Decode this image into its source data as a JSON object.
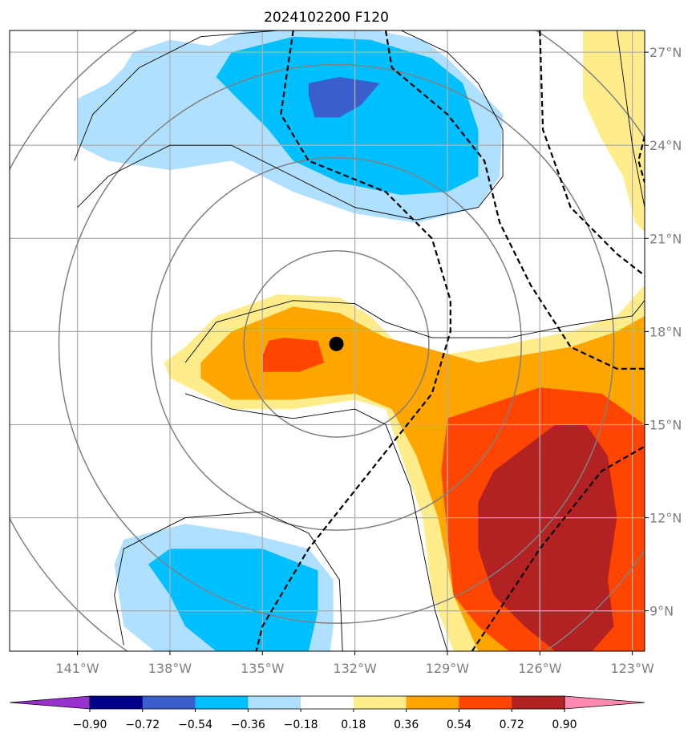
{
  "chart_data": {
    "type": "heatmap",
    "title": "2024102200 F120",
    "x_axis": {
      "unit": "degrees longitude (W)",
      "range": [
        -143.2,
        -122.6
      ],
      "ticks": [
        -141,
        -138,
        -135,
        -132,
        -129,
        -126,
        -123
      ],
      "tick_labels": [
        "141°W",
        "138°W",
        "135°W",
        "132°W",
        "129°W",
        "126°W",
        "123°W"
      ]
    },
    "y_axis": {
      "unit": "degrees latitude (N)",
      "range": [
        7.7,
        27.7
      ],
      "ticks": [
        9,
        12,
        15,
        18,
        21,
        24,
        27
      ],
      "tick_labels": [
        "9°N",
        "12°N",
        "15°N",
        "18°N",
        "21°N",
        "24°N",
        "27°N"
      ]
    },
    "grid": true,
    "colorbar": {
      "levels": [
        -0.9,
        -0.72,
        -0.54,
        -0.36,
        -0.18,
        0.18,
        0.36,
        0.54,
        0.72,
        0.9
      ],
      "labels": [
        "−0.90",
        "−0.72",
        "−0.54",
        "−0.36",
        "−0.18",
        "0.18",
        "0.36",
        "0.54",
        "0.72",
        "0.90"
      ],
      "colors": [
        "#9932cc",
        "#00008b",
        "#3a5fcd",
        "#00bfff",
        "#b0e0ff",
        "#ffffff",
        "#ffec8b",
        "#ffa500",
        "#ff4500",
        "#b22222",
        "#ff88b0"
      ],
      "extend": "both"
    },
    "storm_center": {
      "lon": -132.6,
      "lat": 17.6
    },
    "filled_regions": [
      {
        "color": "#b0e0ff",
        "lonlat": [
          [
            -136.7,
            27.2
          ],
          [
            -135.6,
            27.7
          ],
          [
            -131.3,
            27.7
          ],
          [
            -129.8,
            27.4
          ],
          [
            -129.0,
            26.8
          ],
          [
            -128.0,
            25.8
          ],
          [
            -127.2,
            25.0
          ],
          [
            -127.3,
            23.0
          ],
          [
            -128.0,
            22.0
          ],
          [
            -130.0,
            21.5
          ],
          [
            -132.0,
            21.8
          ],
          [
            -134.0,
            22.5
          ],
          [
            -136.0,
            23.5
          ],
          [
            -138.0,
            23.2
          ],
          [
            -140.0,
            23.5
          ],
          [
            -141.0,
            24.0
          ],
          [
            -141.0,
            25.5
          ],
          [
            -140.0,
            26.0
          ],
          [
            -139.5,
            26.5
          ],
          [
            -139.2,
            27.0
          ],
          [
            -138.0,
            27.4
          ]
        ]
      },
      {
        "color": "#00bfff",
        "lonlat": [
          [
            -136.0,
            27.0
          ],
          [
            -134.0,
            27.5
          ],
          [
            -131.5,
            27.4
          ],
          [
            -129.5,
            26.8
          ],
          [
            -128.5,
            26.0
          ],
          [
            -128.0,
            24.5
          ],
          [
            -128.0,
            23.0
          ],
          [
            -129.0,
            22.5
          ],
          [
            -130.5,
            22.4
          ],
          [
            -132.5,
            22.8
          ],
          [
            -134.0,
            23.5
          ],
          [
            -134.8,
            24.5
          ],
          [
            -135.8,
            25.5
          ],
          [
            -136.5,
            26.2
          ]
        ]
      },
      {
        "color": "#b0e0ff",
        "lonlat": [
          [
            -135.5,
            11.5
          ],
          [
            -133.5,
            11.0
          ],
          [
            -132.7,
            10.0
          ],
          [
            -132.7,
            8.5
          ],
          [
            -132.8,
            7.7
          ],
          [
            -138.5,
            7.7
          ],
          [
            -139.5,
            8.5
          ],
          [
            -139.8,
            10.5
          ],
          [
            -139.5,
            11.3
          ],
          [
            -137.5,
            11.8
          ]
        ]
      },
      {
        "color": "#00bfff",
        "lonlat": [
          [
            -135.0,
            11.0
          ],
          [
            -133.2,
            10.3
          ],
          [
            -133.2,
            9.0
          ],
          [
            -133.5,
            7.7
          ],
          [
            -136.5,
            7.7
          ],
          [
            -137.5,
            8.5
          ],
          [
            -138.0,
            9.5
          ],
          [
            -138.7,
            10.5
          ],
          [
            -138.0,
            11.0
          ],
          [
            -136.5,
            11.0
          ]
        ]
      },
      {
        "color": "#3a5fcd",
        "lonlat": [
          [
            -133.5,
            26.0
          ],
          [
            -132.5,
            26.2
          ],
          [
            -131.2,
            26.0
          ],
          [
            -131.8,
            25.3
          ],
          [
            -132.5,
            24.9
          ],
          [
            -133.3,
            24.9
          ],
          [
            -133.5,
            25.6
          ]
        ]
      },
      {
        "color": "#ffec8b",
        "lonlat": [
          [
            -137.5,
            17.5
          ],
          [
            -136.5,
            18.5
          ],
          [
            -134.5,
            19.2
          ],
          [
            -132.5,
            19.1
          ],
          [
            -131.5,
            18.5
          ],
          [
            -130.5,
            17.5
          ],
          [
            -129.5,
            17.2
          ],
          [
            -127.5,
            17.5
          ],
          [
            -125.0,
            18.0
          ],
          [
            -123.5,
            18.5
          ],
          [
            -122.6,
            19.5
          ],
          [
            -122.6,
            7.7
          ],
          [
            -128.8,
            7.7
          ],
          [
            -129.5,
            9.5
          ],
          [
            -129.8,
            12.0
          ],
          [
            -130.5,
            14.0
          ],
          [
            -131.0,
            15.5
          ],
          [
            -132.0,
            15.8
          ],
          [
            -134.0,
            15.5
          ],
          [
            -136.0,
            15.5
          ],
          [
            -138.0,
            16.5
          ],
          [
            -138.2,
            17.0
          ]
        ]
      },
      {
        "color": "#ffa500",
        "lonlat": [
          [
            -137.0,
            17.0
          ],
          [
            -136.0,
            18.0
          ],
          [
            -134.0,
            18.8
          ],
          [
            -132.5,
            18.6
          ],
          [
            -131.0,
            17.8
          ],
          [
            -129.8,
            17.5
          ],
          [
            -128.0,
            17.0
          ],
          [
            -125.0,
            17.5
          ],
          [
            -123.5,
            18.0
          ],
          [
            -122.6,
            18.5
          ],
          [
            -122.6,
            27.7
          ],
          [
            -124.0,
            27.7
          ],
          [
            -124.0,
            25.0
          ],
          [
            -123.0,
            24.0
          ],
          [
            -122.6,
            22.5
          ],
          [
            -122.6,
            7.7
          ],
          [
            -128.0,
            7.7
          ],
          [
            -128.8,
            9.5
          ],
          [
            -129.3,
            12.0
          ],
          [
            -130.0,
            14.0
          ],
          [
            -130.8,
            15.5
          ],
          [
            -132.0,
            16.0
          ],
          [
            -134.0,
            15.8
          ],
          [
            -136.0,
            15.8
          ],
          [
            -137.0,
            16.5
          ]
        ]
      },
      {
        "color": "#ffec8b",
        "lonlat": [
          [
            -124.6,
            27.7
          ],
          [
            -124.6,
            25.5
          ],
          [
            -124.0,
            24.2
          ],
          [
            -123.3,
            23.0
          ],
          [
            -122.9,
            21.5
          ],
          [
            -122.6,
            21.2
          ],
          [
            -122.6,
            27.7
          ]
        ]
      },
      {
        "color": "#ff4500",
        "lonlat": [
          [
            -134.8,
            17.7
          ],
          [
            -134.3,
            17.8
          ],
          [
            -133.2,
            17.7
          ],
          [
            -133.0,
            17.0
          ],
          [
            -133.8,
            16.7
          ],
          [
            -135.0,
            16.7
          ],
          [
            -135.0,
            17.2
          ]
        ]
      },
      {
        "color": "#ff4500",
        "lonlat": [
          [
            -129.0,
            15.2
          ],
          [
            -126.0,
            16.2
          ],
          [
            -124.0,
            16.0
          ],
          [
            -122.6,
            15.0
          ],
          [
            -122.6,
            7.7
          ],
          [
            -127.0,
            7.7
          ],
          [
            -128.0,
            8.5
          ],
          [
            -128.8,
            9.5
          ],
          [
            -129.0,
            11.5
          ],
          [
            -129.2,
            13.5
          ]
        ]
      },
      {
        "color": "#b22222",
        "lonlat": [
          [
            -127.5,
            13.5
          ],
          [
            -125.5,
            15.0
          ],
          [
            -124.5,
            15.0
          ],
          [
            -123.8,
            14.0
          ],
          [
            -123.5,
            12.0
          ],
          [
            -123.8,
            10.0
          ],
          [
            -123.6,
            8.5
          ],
          [
            -124.3,
            7.7
          ],
          [
            -125.5,
            7.7
          ],
          [
            -126.5,
            8.5
          ],
          [
            -127.5,
            9.5
          ],
          [
            -128.0,
            11.0
          ],
          [
            -128.0,
            12.5
          ]
        ]
      }
    ],
    "solid_contours": [
      {
        "lonlat": [
          [
            -141.1,
            23.5
          ],
          [
            -140.5,
            25.0
          ],
          [
            -139.0,
            26.5
          ],
          [
            -137.0,
            27.5
          ],
          [
            -134.5,
            27.7
          ]
        ],
        "closed": false
      },
      {
        "lonlat": [
          [
            -130.5,
            27.7
          ],
          [
            -129.0,
            27.0
          ],
          [
            -128.0,
            26.0
          ],
          [
            -127.2,
            24.5
          ],
          [
            -127.2,
            23.0
          ],
          [
            -128.0,
            22.0
          ],
          [
            -130.0,
            21.6
          ],
          [
            -132.0,
            22.0
          ],
          [
            -134.0,
            23.0
          ],
          [
            -136.0,
            24.0
          ],
          [
            -138.0,
            24.0
          ],
          [
            -140.0,
            23.0
          ],
          [
            -141.0,
            22.0
          ]
        ],
        "closed": false
      },
      {
        "lonlat": [
          [
            -137.5,
            17.0
          ],
          [
            -136.5,
            18.3
          ],
          [
            -134.0,
            19.0
          ],
          [
            -132.0,
            18.9
          ],
          [
            -131.0,
            18.3
          ],
          [
            -129.5,
            17.8
          ],
          [
            -127.0,
            17.8
          ],
          [
            -125.0,
            18.2
          ],
          [
            -123.0,
            18.5
          ],
          [
            -122.6,
            19.0
          ]
        ],
        "closed": false
      },
      {
        "lonlat": [
          [
            -137.5,
            16.0
          ],
          [
            -136.0,
            15.5
          ],
          [
            -134.0,
            15.2
          ],
          [
            -132.0,
            15.5
          ],
          [
            -131.0,
            15.0
          ],
          [
            -130.2,
            13.0
          ],
          [
            -129.8,
            11.0
          ],
          [
            -129.4,
            9.0
          ],
          [
            -129.0,
            7.7
          ]
        ],
        "closed": false
      },
      {
        "lonlat": [
          [
            -123.5,
            27.7
          ],
          [
            -123.0,
            24.0
          ],
          [
            -122.6,
            22.0
          ]
        ],
        "closed": false
      },
      {
        "lonlat": [
          [
            -139.5,
            7.9
          ],
          [
            -139.8,
            9.5
          ],
          [
            -139.5,
            11.0
          ],
          [
            -137.5,
            12.0
          ],
          [
            -135.0,
            12.2
          ],
          [
            -133.5,
            11.5
          ],
          [
            -132.5,
            10.0
          ],
          [
            -132.4,
            7.7
          ]
        ],
        "closed": false
      }
    ],
    "gray_circles": [
      {
        "center": [
          -132.6,
          17.6
        ],
        "radius_deg": 3.0
      },
      {
        "center": [
          -132.6,
          17.6
        ],
        "radius_deg": 6.0
      },
      {
        "center": [
          -132.6,
          17.6
        ],
        "radius_deg": 9.0
      },
      {
        "center": [
          -132.6,
          17.6
        ],
        "radius_deg": 12.0
      }
    ],
    "dashed_contours": [
      {
        "lonlat": [
          [
            -134.0,
            27.7
          ],
          [
            -134.4,
            25.0
          ],
          [
            -133.5,
            23.5
          ],
          [
            -131.0,
            22.5
          ],
          [
            -129.5,
            21.0
          ],
          [
            -128.9,
            19.0
          ],
          [
            -128.9,
            18.0
          ],
          [
            -129.5,
            16.0
          ],
          [
            -131.5,
            13.5
          ],
          [
            -133.5,
            11.0
          ],
          [
            -135.0,
            8.5
          ],
          [
            -135.2,
            7.7
          ]
        ]
      },
      {
        "lonlat": [
          [
            -131.0,
            27.7
          ],
          [
            -130.8,
            26.5
          ],
          [
            -129.0,
            25.0
          ],
          [
            -127.8,
            23.5
          ],
          [
            -127.3,
            21.5
          ],
          [
            -126.3,
            19.5
          ],
          [
            -125.0,
            17.5
          ],
          [
            -123.5,
            16.8
          ],
          [
            -122.6,
            16.8
          ]
        ]
      },
      {
        "lonlat": [
          [
            -126.0,
            27.7
          ],
          [
            -125.9,
            24.5
          ],
          [
            -125.0,
            22.0
          ],
          [
            -123.5,
            20.5
          ],
          [
            -122.6,
            19.8
          ]
        ]
      },
      {
        "lonlat": [
          [
            -128.2,
            7.7
          ],
          [
            -126.0,
            11.0
          ],
          [
            -124.0,
            13.5
          ],
          [
            -122.6,
            14.3
          ]
        ]
      },
      {
        "lonlat": [
          [
            -122.6,
            24.3
          ],
          [
            -122.8,
            23.5
          ],
          [
            -122.6,
            22.8
          ]
        ]
      }
    ]
  }
}
